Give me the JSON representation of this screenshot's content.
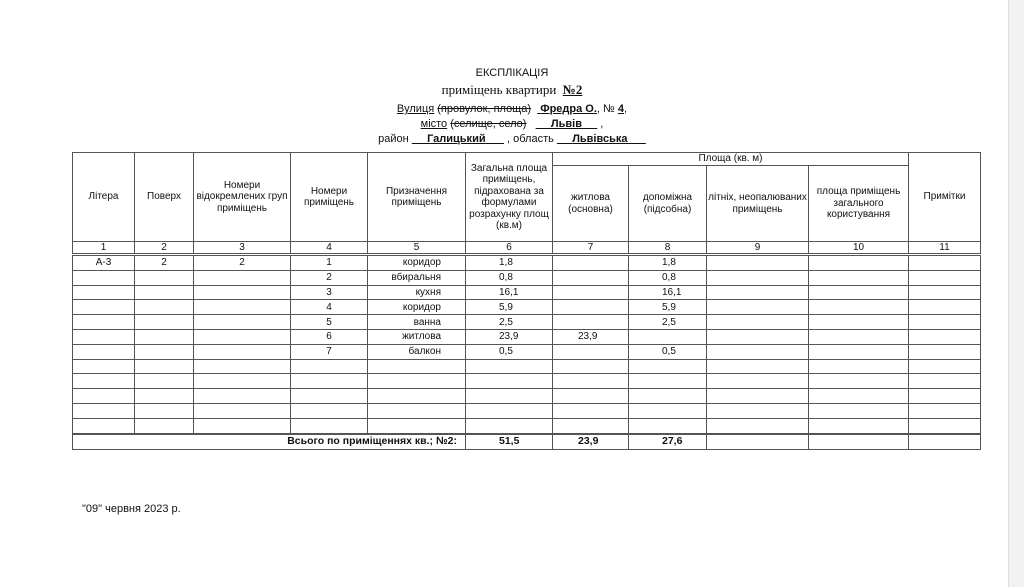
{
  "title": "ЕКСПЛІКАЦІЯ",
  "subtitle": "приміщень квартири",
  "apartment_no": "№2",
  "address": {
    "street_label": "Вулиця",
    "street_struck": "(провулок, площа)",
    "street": "Фредра О.",
    "house_label": ", №",
    "house": "4",
    "city_label": "місто",
    "city_struck": "(селище, село)",
    "city": "Львів",
    "district_label": "район",
    "district": "Галицький",
    "region_label": ", область",
    "region": "Львівська"
  },
  "table": {
    "headers": {
      "c1": "Літера",
      "c2": "Поверх",
      "c3": "Номери відокремлених груп приміщень",
      "c4": "Номери приміщень",
      "c5": "Призначення приміщень",
      "c6": "Загальна площа приміщень, підрахована за формулами розрахунку площ (кв.м)",
      "area_group": "Площа (кв. м)",
      "c7": "житлова (основна)",
      "c8": "допоміжна (підсобна)",
      "c9": "літніх, неопалюваних приміщень",
      "c10": "площа приміщень загального користування",
      "c11": "Примітки"
    },
    "column_numbers": [
      "1",
      "2",
      "3",
      "4",
      "5",
      "6",
      "7",
      "8",
      "9",
      "10",
      "11"
    ],
    "rows": [
      [
        "А-3",
        "2",
        "2",
        "1",
        "коридор",
        "1,8",
        "",
        "1,8",
        "",
        "",
        ""
      ],
      [
        "",
        "",
        "",
        "2",
        "вбиральня",
        "0,8",
        "",
        "0,8",
        "",
        "",
        ""
      ],
      [
        "",
        "",
        "",
        "3",
        "кухня",
        "16,1",
        "",
        "16,1",
        "",
        "",
        ""
      ],
      [
        "",
        "",
        "",
        "4",
        "коридор",
        "5,9",
        "",
        "5,9",
        "",
        "",
        ""
      ],
      [
        "",
        "",
        "",
        "5",
        "ванна",
        "2,5",
        "",
        "2,5",
        "",
        "",
        ""
      ],
      [
        "",
        "",
        "",
        "6",
        "житлова",
        "23,9",
        "23,9",
        "",
        "",
        "",
        ""
      ],
      [
        "",
        "",
        "",
        "7",
        "балкон",
        "0,5",
        "",
        "0,5",
        "",
        "",
        ""
      ],
      [
        "",
        "",
        "",
        "",
        "",
        "",
        "",
        "",
        "",
        "",
        ""
      ],
      [
        "",
        "",
        "",
        "",
        "",
        "",
        "",
        "",
        "",
        "",
        ""
      ],
      [
        "",
        "",
        "",
        "",
        "",
        "",
        "",
        "",
        "",
        "",
        ""
      ],
      [
        "",
        "",
        "",
        "",
        "",
        "",
        "",
        "",
        "",
        "",
        ""
      ],
      [
        "",
        "",
        "",
        "",
        "",
        "",
        "",
        "",
        "",
        "",
        ""
      ]
    ],
    "total": {
      "label": "Всього по приміщеннях кв.; №2:",
      "total_area": "51,5",
      "living": "23,9",
      "auxiliary": "27,6"
    }
  },
  "date": "\"09\" червня  2023 р."
}
